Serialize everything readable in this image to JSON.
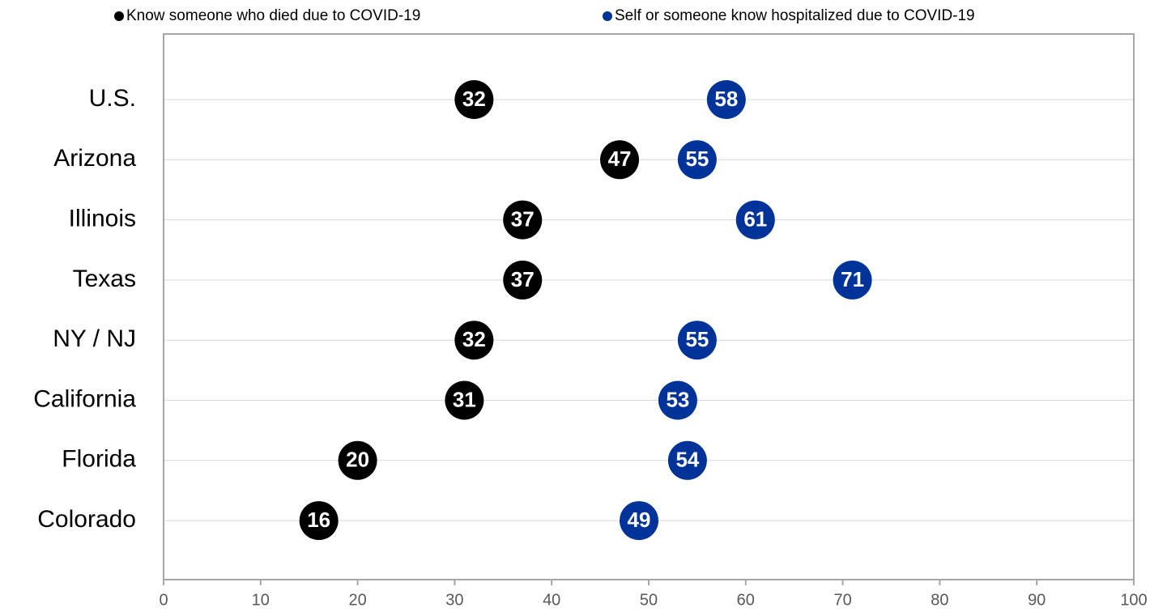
{
  "chart_data": {
    "type": "dot",
    "categories": [
      "U.S.",
      "Arizona",
      "Illinois",
      "Texas",
      "NY / NJ",
      "California",
      "Florida",
      "Colorado"
    ],
    "series": [
      {
        "name": "Know someone who died due to COVID-19",
        "color": "#000000",
        "values": [
          32,
          47,
          37,
          37,
          32,
          31,
          20,
          16
        ]
      },
      {
        "name": "Self or someone know hospitalized due to COVID-19",
        "color": "#003399",
        "values": [
          58,
          55,
          61,
          71,
          55,
          53,
          54,
          49
        ]
      }
    ],
    "xlim": [
      0,
      100
    ],
    "xticks": [
      0,
      10,
      20,
      30,
      40,
      50,
      60,
      70,
      80,
      90,
      100
    ],
    "grid": true
  }
}
